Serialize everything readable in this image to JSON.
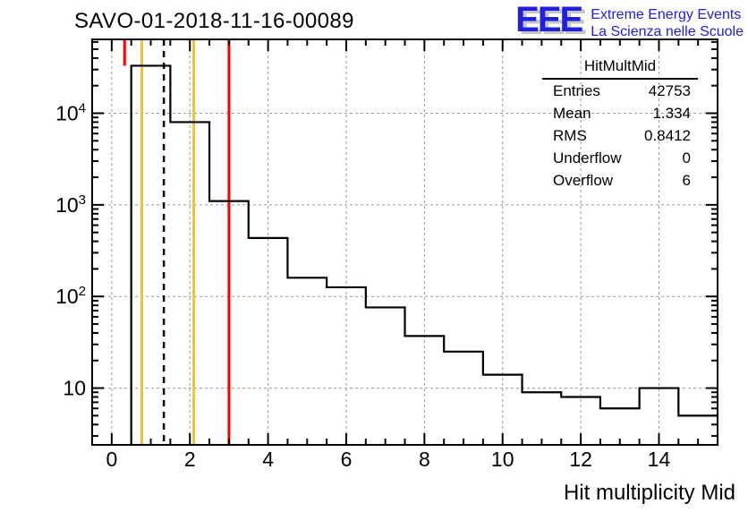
{
  "title": "SAVO-01-2018-11-16-00089",
  "logo": {
    "eee": "EEE",
    "line1": "Extreme Energy Events",
    "line2": "La Scienza nelle Scuole",
    "color": "#2121dd",
    "shadow_color": "#c6c6c6"
  },
  "stats": {
    "title": "HitMultMid",
    "rows": [
      {
        "label": "Entries",
        "value": "42753"
      },
      {
        "label": "Mean",
        "value": "1.334"
      },
      {
        "label": "RMS",
        "value": "0.8412"
      },
      {
        "label": "Underflow",
        "value": "0"
      },
      {
        "label": "Overflow",
        "value": "6"
      }
    ]
  },
  "chart_data": {
    "type": "bar",
    "subtype": "step-histogram-log-y",
    "title": "SAVO-01-2018-11-16-00089",
    "xlabel": "Hit multiplicity Mid",
    "ylabel": "",
    "x_range": [
      -0.5,
      15.5
    ],
    "y_range": [
      2.4,
      64000
    ],
    "y_scale": "log",
    "grid": true,
    "grid_color": "#999999",
    "x_major_ticks": [
      0,
      2,
      4,
      6,
      8,
      10,
      12,
      14
    ],
    "x_minor_tick_step": 0.5,
    "y_major_ticks": [
      10,
      100,
      1000,
      10000
    ],
    "y_tick_labels": [
      "10",
      "10^2",
      "10^3",
      "10^4"
    ],
    "bin_width": 1,
    "bin_centers": [
      1,
      2,
      3,
      4,
      5,
      6,
      7,
      8,
      9,
      10,
      11,
      12,
      13,
      14,
      15
    ],
    "counts": [
      33000,
      8000,
      1100,
      435,
      160,
      126,
      76,
      37,
      25,
      14,
      9,
      8,
      6,
      10,
      5
    ],
    "line_color": "#000000",
    "marker_lines": [
      {
        "name": "red-line-low",
        "x": 0.33,
        "color": "#ff0000",
        "style": "solid",
        "y_from": 33000,
        "y_to": 64000
      },
      {
        "name": "yellow-line-low",
        "x": 0.77,
        "color": "#ffc400",
        "style": "solid",
        "y_from": 2.4,
        "y_to": 64000
      },
      {
        "name": "mean-dashed-line",
        "x": 1.334,
        "color": "#000000",
        "style": "dashed",
        "y_from": 2.4,
        "y_to": 64000
      },
      {
        "name": "yellow-line-high",
        "x": 2.1,
        "color": "#ffc400",
        "style": "solid",
        "y_from": 2.4,
        "y_to": 64000
      },
      {
        "name": "red-line-high",
        "x": 3.0,
        "color": "#ff0000",
        "style": "solid",
        "y_from": 2.4,
        "y_to": 64000
      }
    ]
  }
}
